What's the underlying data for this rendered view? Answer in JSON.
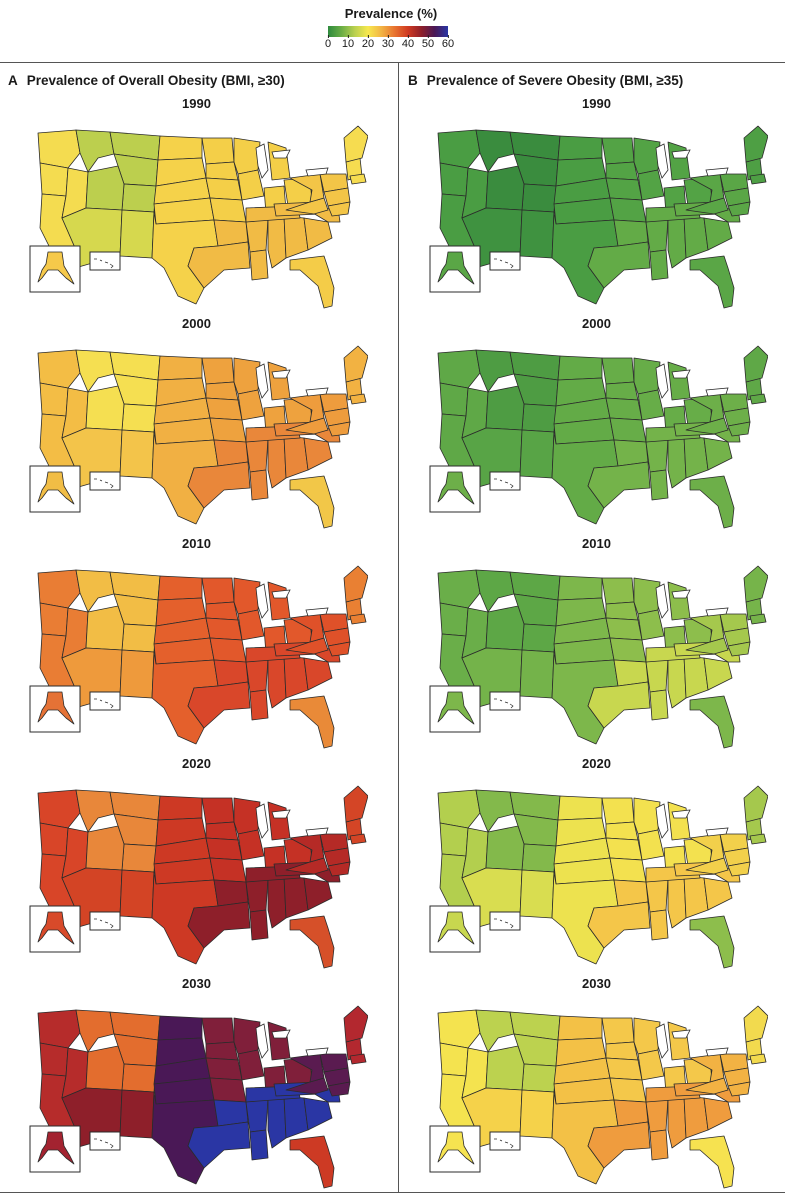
{
  "legend": {
    "title": "Prevalence (%)",
    "ticks": [
      "0",
      "10",
      "20",
      "30",
      "40",
      "50",
      "60"
    ],
    "tick_values": [
      0,
      10,
      20,
      30,
      40,
      50,
      60
    ],
    "scale_colors": [
      "#2e8b3e",
      "#69ad45",
      "#b9d04f",
      "#f7e84e",
      "#f2b444",
      "#e8732f",
      "#cf3a22",
      "#8e1f2a",
      "#4a1856",
      "#2a36a4"
    ]
  },
  "panels": [
    {
      "letter": "A",
      "title": "Prevalence of Overall Obesity (BMI, ≥30)",
      "maps": [
        {
          "year": "1990",
          "fills": {
            "west": "#f4dc50",
            "southwest": "#d6d84e",
            "mountain": "#bccf4e",
            "plains": "#f5d24a",
            "midwest": "#f4cf48",
            "south": "#f1bb45",
            "east": "#f3c547",
            "northeast": "#f6dc50",
            "florida": "#f4cc48",
            "alaska": "#f6c94a"
          }
        },
        {
          "year": "2000",
          "fills": {
            "west": "#f3bd45",
            "southwest": "#f3c44a",
            "mountain": "#f5df51",
            "plains": "#f1b043",
            "midwest": "#eea23e",
            "south": "#e9873a",
            "east": "#ee9c3d",
            "northeast": "#f2b242",
            "florida": "#f2c748",
            "alaska": "#f1bd45"
          }
        },
        {
          "year": "2010",
          "fills": {
            "west": "#e97d34",
            "southwest": "#ee9a3c",
            "mountain": "#f2bd45",
            "plains": "#e4602c",
            "midwest": "#e2582b",
            "south": "#d9472a",
            "east": "#df5129",
            "northeast": "#e98033",
            "florida": "#e98a38",
            "alaska": "#e57236"
          }
        },
        {
          "year": "2020",
          "fills": {
            "west": "#d84528",
            "southwest": "#d34425",
            "mountain": "#e8873a",
            "plains": "#cd3924",
            "midwest": "#c53125",
            "south": "#8e1f2a",
            "east": "#b52a26",
            "northeast": "#d44526",
            "florida": "#d65029",
            "alaska": "#d84a2a"
          }
        },
        {
          "year": "2030",
          "fills": {
            "west": "#b62c2b",
            "southwest": "#8e1f2a",
            "mountain": "#e36d2e",
            "plains": "#4a1856",
            "midwest": "#801f3a",
            "south": "#2a36a4",
            "east": "#5a1b50",
            "northeast": "#b3282f",
            "florida": "#cd3a24",
            "alaska": "#a32330"
          }
        }
      ]
    },
    {
      "letter": "B",
      "title": "Prevalence of Severe Obesity (BMI, ≥35)",
      "maps": [
        {
          "year": "1990",
          "fills": {
            "west": "#4a9d43",
            "southwest": "#3f9240",
            "mountain": "#3a8c3e",
            "plains": "#4a9d43",
            "midwest": "#53a345",
            "south": "#63ab47",
            "east": "#5aa646",
            "northeast": "#4e9f44",
            "florida": "#5aa646",
            "alaska": "#5aa646"
          }
        },
        {
          "year": "2000",
          "fills": {
            "west": "#5fa847",
            "southwest": "#58a446",
            "mountain": "#4e9c43",
            "plains": "#63ab47",
            "midwest": "#67ad48",
            "south": "#74b34a",
            "east": "#6daf49",
            "northeast": "#5fa847",
            "florida": "#6daf49",
            "alaska": "#6daf49"
          }
        },
        {
          "year": "2010",
          "fills": {
            "west": "#6aae49",
            "southwest": "#74b34a",
            "mountain": "#5da746",
            "plains": "#7db74b",
            "midwest": "#8dbe4c",
            "south": "#c8d74f",
            "east": "#a5c84d",
            "northeast": "#76b44a",
            "florida": "#7db74b",
            "alaska": "#7db74b"
          }
        },
        {
          "year": "2020",
          "fills": {
            "west": "#b3cf4e",
            "southwest": "#d9dd50",
            "mountain": "#83b94b",
            "plains": "#ede24f",
            "midwest": "#f3e14f",
            "south": "#f4c649",
            "east": "#f2d04b",
            "northeast": "#a5c84d",
            "florida": "#8dbe4c",
            "alaska": "#c8d74f"
          }
        },
        {
          "year": "2030",
          "fills": {
            "west": "#f4e34f",
            "southwest": "#f5d24a",
            "mountain": "#bcd24f",
            "plains": "#f3c146",
            "midwest": "#f4c84a",
            "south": "#ef9c3e",
            "east": "#f2b243",
            "northeast": "#f2da4e",
            "florida": "#f6e250",
            "alaska": "#f6e350"
          }
        }
      ]
    }
  ]
}
